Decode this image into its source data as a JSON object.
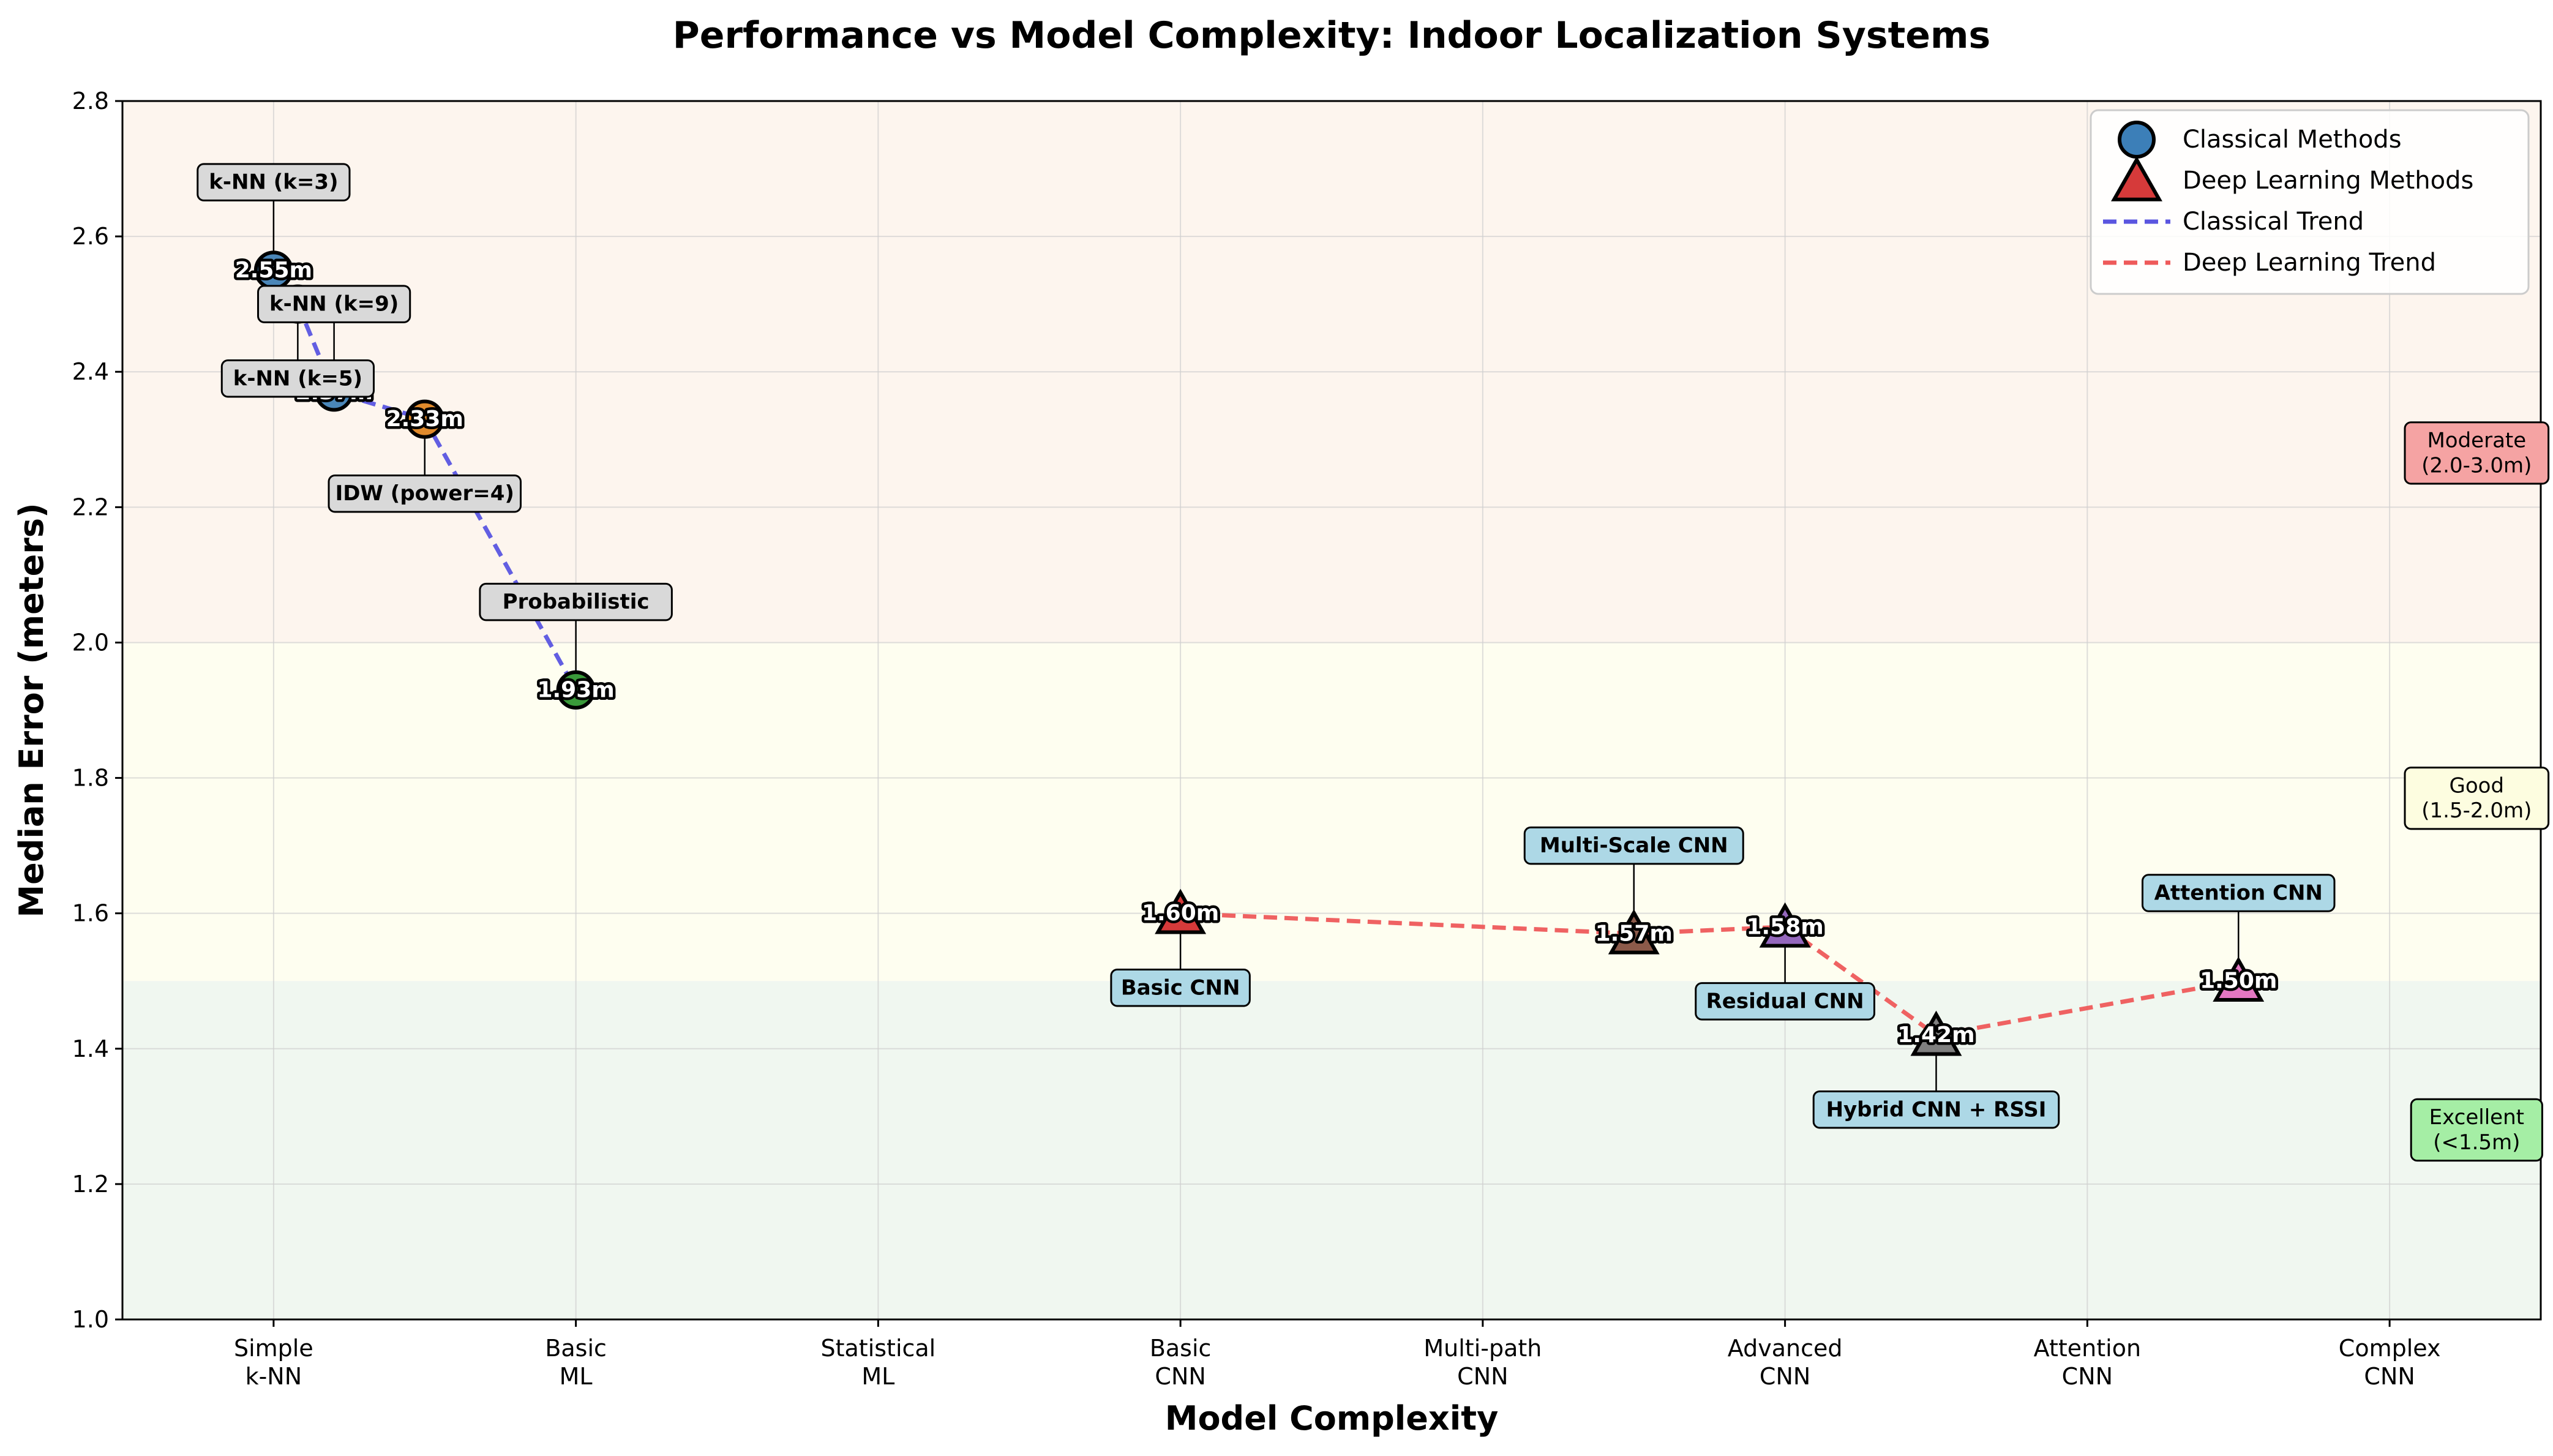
{
  "chart_data": {
    "type": "scatter",
    "title": "Performance vs Model Complexity: Indoor Localization Systems",
    "xlabel": "Model Complexity",
    "ylabel": "Median Error (meters)",
    "ylim": [
      1.0,
      2.8
    ],
    "xlim": [
      -0.5,
      7.5
    ],
    "yticks": [
      1.0,
      1.2,
      1.4,
      1.6,
      1.8,
      2.0,
      2.2,
      2.4,
      2.6,
      2.8
    ],
    "ytick_labels": [
      "1.0",
      "1.2",
      "1.4",
      "1.6",
      "1.8",
      "2.0",
      "2.2",
      "2.4",
      "2.6",
      "2.8"
    ],
    "x_categories": [
      [
        "Simple",
        "k-NN"
      ],
      [
        "Basic",
        "ML"
      ],
      [
        "Statistical",
        "ML"
      ],
      [
        "Basic",
        "CNN"
      ],
      [
        "Multi-path",
        "CNN"
      ],
      [
        "Advanced",
        "CNN"
      ],
      [
        "Attention",
        "CNN"
      ],
      [
        "Complex",
        "CNN"
      ]
    ],
    "grid": true,
    "legend_position": "top-right",
    "legend": [
      {
        "label": "Classical Methods",
        "kind": "circle"
      },
      {
        "label": "Deep Learning Methods",
        "kind": "triangle"
      },
      {
        "label": "Classical Trend",
        "kind": "line",
        "color": "#5a55e0"
      },
      {
        "label": "Deep Learning Trend",
        "kind": "line",
        "color": "#ee5a5a"
      }
    ],
    "zones": [
      {
        "label_lines": [
          "Moderate",
          "(2.0-3.0m)"
        ],
        "ymin": 2.0,
        "ymax": 2.8,
        "fill": "#fdf5ee",
        "label_bg": "#f5a3a3"
      },
      {
        "label_lines": [
          "Good",
          "(1.5-2.0m)"
        ],
        "ymin": 1.5,
        "ymax": 2.0,
        "fill": "#fefef0",
        "label_bg": "#fdfde0"
      },
      {
        "label_lines": [
          "Excellent",
          "(<1.5m)"
        ],
        "ymin": 1.0,
        "ymax": 1.5,
        "fill": "#f0f7f0",
        "label_bg": "#a5eea5"
      }
    ],
    "series": [
      {
        "name": "Classical Methods",
        "marker": "circle",
        "trend_color": "#5a55e0",
        "label_bg": "#d9d9d9",
        "points": [
          {
            "name": "k-NN (k=3)",
            "x": 0.0,
            "y": 2.55,
            "value_label": "2.55m",
            "color": "#4a86b8",
            "label_dy": 0.13
          },
          {
            "name": "k-NN (k=9)",
            "x": 0.2,
            "y": 2.37,
            "value_label": "2.37m",
            "color": "#4a86b8",
            "label_dy": 0.13
          },
          {
            "name": "k-NN (k=5)",
            "x": 0.08,
            "y": 2.5,
            "value_label": "2.50m",
            "color": "#5aa0d0",
            "label_dy": -0.11
          },
          {
            "name": "IDW (power=4)",
            "x": 0.5,
            "y": 2.33,
            "value_label": "2.33m",
            "color": "#e08a2c",
            "label_dy": -0.11
          },
          {
            "name": "Probabilistic",
            "x": 1.0,
            "y": 1.93,
            "value_label": "1.93m",
            "color": "#3a9a3a",
            "label_dy": 0.13
          }
        ]
      },
      {
        "name": "Deep Learning Methods",
        "marker": "triangle",
        "trend_color": "#ee5a5a",
        "label_bg": "#add8e6",
        "points": [
          {
            "name": "Basic CNN",
            "x": 3.0,
            "y": 1.6,
            "value_label": "1.60m",
            "color": "#d63a3a",
            "label_dy": -0.11
          },
          {
            "name": "Multi-Scale CNN",
            "x": 4.5,
            "y": 1.57,
            "value_label": "1.57m",
            "color": "#8c5a4a",
            "label_dy": 0.13
          },
          {
            "name": "Residual CNN",
            "x": 5.0,
            "y": 1.58,
            "value_label": "1.58m",
            "color": "#9467bd",
            "label_dy": -0.11
          },
          {
            "name": "Hybrid CNN + RSSI",
            "x": 5.5,
            "y": 1.42,
            "value_label": "1.42m",
            "color": "#7f7f7f",
            "label_dy": -0.11
          },
          {
            "name": "Attention CNN",
            "x": 6.5,
            "y": 1.5,
            "value_label": "1.50m",
            "color": "#e377c2",
            "label_dy": 0.13
          }
        ]
      }
    ]
  }
}
